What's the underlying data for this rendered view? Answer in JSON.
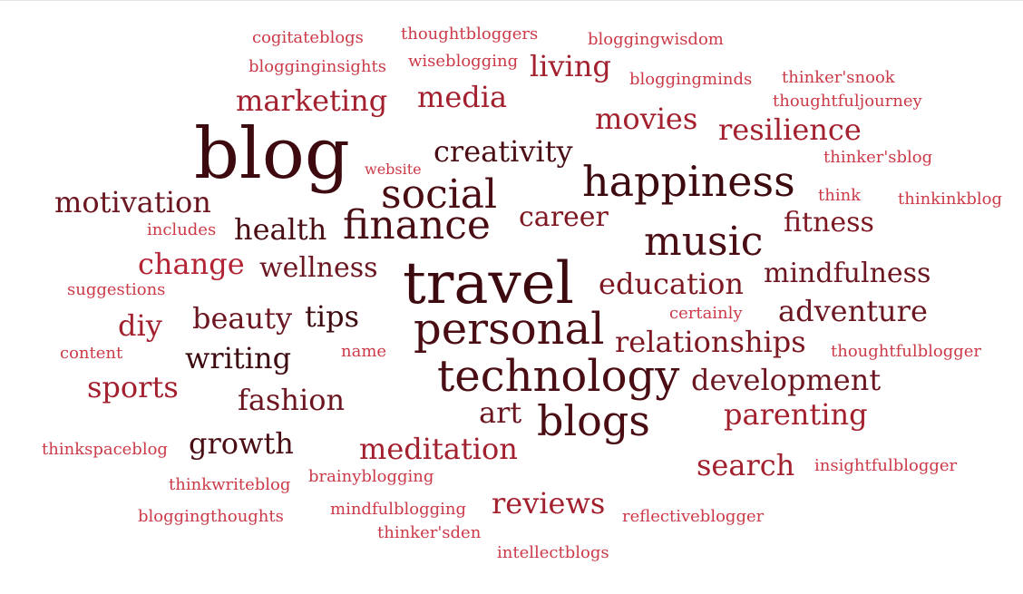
{
  "words": [
    {
      "text": "blog",
      "color": "#3d0a10"
    },
    {
      "text": "travel",
      "color": "#3d0a10"
    },
    {
      "text": "technology",
      "color": "#4a0d14"
    },
    {
      "text": "personal",
      "color": "#4a0d14"
    },
    {
      "text": "blogs",
      "color": "#4a0d14"
    },
    {
      "text": "happiness",
      "color": "#3d0a10"
    },
    {
      "text": "finance",
      "color": "#4a0d14"
    },
    {
      "text": "music",
      "color": "#4a0d14"
    },
    {
      "text": "social",
      "color": "#4a0d14"
    },
    {
      "text": "creativity",
      "color": "#4a0d14"
    },
    {
      "text": "motivation",
      "color": "#6b1620"
    },
    {
      "text": "health",
      "color": "#4a0d14"
    },
    {
      "text": "career",
      "color": "#7d1822"
    },
    {
      "text": "fitness",
      "color": "#7d1822"
    },
    {
      "text": "mindfulness",
      "color": "#6b1620"
    },
    {
      "text": "education",
      "color": "#7d1822"
    },
    {
      "text": "adventure",
      "color": "#6b1620"
    },
    {
      "text": "relationships",
      "color": "#7d1822"
    },
    {
      "text": "development",
      "color": "#6b1620"
    },
    {
      "text": "parenting",
      "color": "#a3202e"
    },
    {
      "text": "search",
      "color": "#a3202e"
    },
    {
      "text": "reviews",
      "color": "#a3202e"
    },
    {
      "text": "meditation",
      "color": "#a3202e"
    },
    {
      "text": "growth",
      "color": "#4a0d14"
    },
    {
      "text": "fashion",
      "color": "#6b1620"
    },
    {
      "text": "writing",
      "color": "#3d0a10"
    },
    {
      "text": "sports",
      "color": "#a3202e"
    },
    {
      "text": "beauty",
      "color": "#6b1620"
    },
    {
      "text": "tips",
      "color": "#3d0a10"
    },
    {
      "text": "diy",
      "color": "#a3202e"
    },
    {
      "text": "change",
      "color": "#b32434"
    },
    {
      "text": "wellness",
      "color": "#6b1620"
    },
    {
      "text": "marketing",
      "color": "#a3202e"
    },
    {
      "text": "media",
      "color": "#a3202e"
    },
    {
      "text": "living",
      "color": "#a3202e"
    },
    {
      "text": "movies",
      "color": "#a3202e"
    },
    {
      "text": "resilience",
      "color": "#a3202e"
    },
    {
      "text": "art",
      "color": "#6b1620"
    },
    {
      "text": "cogitateblogs",
      "color": "#cc3a48"
    },
    {
      "text": "thoughtbloggers",
      "color": "#cc3a48"
    },
    {
      "text": "bloggingwisdom",
      "color": "#cc3a48"
    },
    {
      "text": "blogginginsights",
      "color": "#cc3a48"
    },
    {
      "text": "wiseblogging",
      "color": "#cc3a48"
    },
    {
      "text": "bloggingminds",
      "color": "#cc3a48"
    },
    {
      "text": "thinker'snook",
      "color": "#cc3a48"
    },
    {
      "text": "thoughtfuljourney",
      "color": "#cc3a48"
    },
    {
      "text": "thinker'sblog",
      "color": "#cc3a48"
    },
    {
      "text": "website",
      "color": "#cc3a48"
    },
    {
      "text": "think",
      "color": "#cc3a48"
    },
    {
      "text": "thinkinkblog",
      "color": "#cc3a48"
    },
    {
      "text": "includes",
      "color": "#cc3a48"
    },
    {
      "text": "suggestions",
      "color": "#cc3a48"
    },
    {
      "text": "certainly",
      "color": "#cc3a48"
    },
    {
      "text": "content",
      "color": "#cc3a48"
    },
    {
      "text": "name",
      "color": "#cc3a48"
    },
    {
      "text": "thoughtfulblogger",
      "color": "#cc3a48"
    },
    {
      "text": "thinkspaceblog",
      "color": "#cc3a48"
    },
    {
      "text": "insightfulblogger",
      "color": "#cc3a48"
    },
    {
      "text": "thinkwriteblog",
      "color": "#cc3a48"
    },
    {
      "text": "brainyblogging",
      "color": "#cc3a48"
    },
    {
      "text": "mindfulblogging",
      "color": "#cc3a48"
    },
    {
      "text": "bloggingthoughts",
      "color": "#cc3a48"
    },
    {
      "text": "reflectiveblogger",
      "color": "#cc3a48"
    },
    {
      "text": "thinker'sden",
      "color": "#cc3a48"
    },
    {
      "text": "intellectblogs",
      "color": "#cc3a48"
    }
  ]
}
